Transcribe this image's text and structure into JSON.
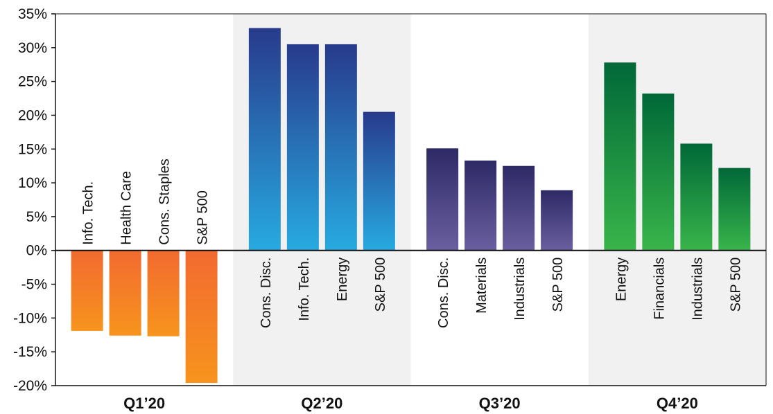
{
  "chart_data": {
    "type": "bar",
    "ylim": [
      -20,
      35
    ],
    "yticks": [
      "35%",
      "30%",
      "25%",
      "20%",
      "15%",
      "10%",
      "5%",
      "0%",
      "-5%",
      "-10%",
      "-15%",
      "-20%"
    ],
    "ytick_values": [
      35,
      30,
      25,
      20,
      15,
      10,
      5,
      0,
      -5,
      -10,
      -15,
      -20
    ],
    "colors": {
      "q1": [
        "#f7941d",
        "#f26a30"
      ],
      "q2": [
        "#27aae1",
        "#283a8c"
      ],
      "q3": [
        "#6a5fa0",
        "#2e2a66"
      ],
      "q4": [
        "#39b54a",
        "#006838"
      ],
      "band": "#f1f1f2"
    },
    "groups": [
      {
        "quarter": "Q1’20",
        "color_key": "q1",
        "shaded": false,
        "categories": [
          "Info. Tech.",
          "Health Care",
          "Cons. Staples",
          "S&P 500"
        ],
        "values": [
          -11.9,
          -12.6,
          -12.7,
          -19.6
        ]
      },
      {
        "quarter": "Q2’20",
        "color_key": "q2",
        "shaded": true,
        "categories": [
          "Cons. Disc.",
          "Info. Tech.",
          "Energy",
          "S&P 500"
        ],
        "values": [
          32.9,
          30.5,
          30.5,
          20.5
        ]
      },
      {
        "quarter": "Q3’20",
        "color_key": "q3",
        "shaded": false,
        "categories": [
          "Cons. Disc.",
          "Materials",
          "Industrials",
          "S&P 500"
        ],
        "values": [
          15.1,
          13.3,
          12.5,
          8.9
        ]
      },
      {
        "quarter": "Q4’20",
        "color_key": "q4",
        "shaded": true,
        "categories": [
          "Energy",
          "Financials",
          "Industrials",
          "S&P 500"
        ],
        "values": [
          27.8,
          23.2,
          15.8,
          12.2
        ]
      }
    ]
  }
}
